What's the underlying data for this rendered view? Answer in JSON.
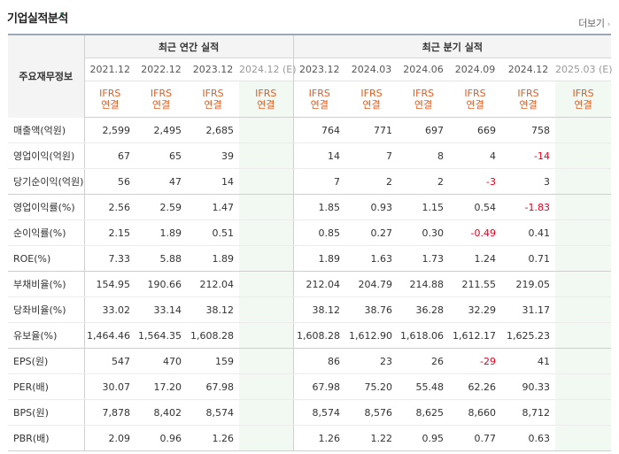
{
  "section_title": "기업실적분석",
  "more_link": "더보기",
  "header": {
    "row_label": "주요재무정보",
    "annual_group": "최근 연간 실적",
    "quarter_group": "최근 분기 실적",
    "annual_periods": [
      "2021.12",
      "2022.12",
      "2023.12",
      "2024.12 (E)"
    ],
    "quarter_periods": [
      "2023.12",
      "2024.03",
      "2024.06",
      "2024.09",
      "2024.12",
      "2025.03 (E)"
    ],
    "ifrs_top": "IFRS",
    "ifrs_bottom": "연결"
  },
  "rows": [
    {
      "label": "매출액(억원)",
      "annual": [
        "2,599",
        "2,495",
        "2,685",
        ""
      ],
      "quarter": [
        "764",
        "771",
        "697",
        "669",
        "758",
        ""
      ]
    },
    {
      "label": "영업이익(억원)",
      "annual": [
        "67",
        "65",
        "39",
        ""
      ],
      "quarter": [
        "14",
        "7",
        "8",
        "4",
        "-14",
        ""
      ]
    },
    {
      "label": "당기순이익(억원)",
      "annual": [
        "56",
        "47",
        "14",
        ""
      ],
      "quarter": [
        "7",
        "2",
        "2",
        "-3",
        "3",
        ""
      ]
    },
    {
      "label": "영업이익률(%)",
      "annual": [
        "2.56",
        "2.59",
        "1.47",
        ""
      ],
      "quarter": [
        "1.85",
        "0.93",
        "1.15",
        "0.54",
        "-1.83",
        ""
      ]
    },
    {
      "label": "순이익률(%)",
      "annual": [
        "2.15",
        "1.89",
        "0.51",
        ""
      ],
      "quarter": [
        "0.85",
        "0.27",
        "0.30",
        "-0.49",
        "0.41",
        ""
      ]
    },
    {
      "label": "ROE(%)",
      "annual": [
        "7.33",
        "5.88",
        "1.89",
        ""
      ],
      "quarter": [
        "1.89",
        "1.63",
        "1.73",
        "1.24",
        "0.71",
        ""
      ]
    },
    {
      "label": "부채비율(%)",
      "annual": [
        "154.95",
        "190.66",
        "212.04",
        ""
      ],
      "quarter": [
        "212.04",
        "204.79",
        "214.88",
        "211.55",
        "219.05",
        ""
      ]
    },
    {
      "label": "당좌비율(%)",
      "annual": [
        "33.02",
        "33.14",
        "38.12",
        ""
      ],
      "quarter": [
        "38.12",
        "38.76",
        "36.28",
        "32.29",
        "31.17",
        ""
      ]
    },
    {
      "label": "유보율(%)",
      "annual": [
        "1,464.46",
        "1,564.35",
        "1,608.28",
        ""
      ],
      "quarter": [
        "1,608.28",
        "1,612.90",
        "1,618.06",
        "1,612.17",
        "1,625.23",
        ""
      ]
    },
    {
      "label": "EPS(원)",
      "annual": [
        "547",
        "470",
        "159",
        ""
      ],
      "quarter": [
        "86",
        "23",
        "26",
        "-29",
        "41",
        ""
      ]
    },
    {
      "label": "PER(배)",
      "annual": [
        "30.07",
        "17.20",
        "67.98",
        ""
      ],
      "quarter": [
        "67.98",
        "75.20",
        "55.48",
        "62.26",
        "90.33",
        ""
      ]
    },
    {
      "label": "BPS(원)",
      "annual": [
        "7,878",
        "8,402",
        "8,574",
        ""
      ],
      "quarter": [
        "8,574",
        "8,576",
        "8,625",
        "8,660",
        "8,712",
        ""
      ]
    },
    {
      "label": "PBR(배)",
      "annual": [
        "2.09",
        "0.96",
        "1.26",
        ""
      ],
      "quarter": [
        "1.26",
        "1.22",
        "0.95",
        "0.77",
        "0.63",
        ""
      ]
    }
  ],
  "colors": {
    "negative": "#e8001e",
    "ifrs": "#e55a1c",
    "estimate_bg": "#f2f9f2",
    "header_border": "#9aa9b8"
  }
}
